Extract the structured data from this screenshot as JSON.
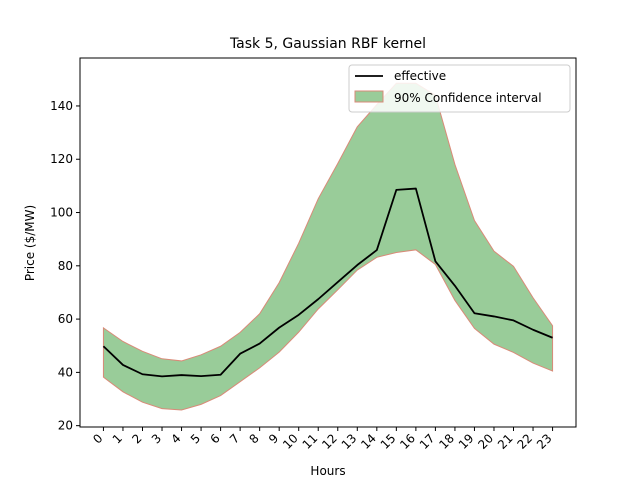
{
  "chart_data": {
    "type": "line",
    "title": "Task 5, Gaussian RBF kernel",
    "xlabel": "Hours",
    "ylabel": "Price ($/MW)",
    "x": [
      0,
      1,
      2,
      3,
      4,
      5,
      6,
      7,
      8,
      9,
      10,
      11,
      12,
      13,
      14,
      15,
      16,
      17,
      18,
      19,
      20,
      21,
      22,
      23
    ],
    "xlim": [
      -1.2,
      24.2
    ],
    "ylim": [
      19.5,
      158
    ],
    "yticks": [
      20,
      40,
      60,
      80,
      100,
      120,
      140
    ],
    "legend_position": "top-right",
    "grid": false,
    "series": [
      {
        "name": "effective",
        "color": "#000000",
        "values": [
          49.8,
          42.8,
          39.3,
          38.5,
          39.0,
          38.6,
          39.1,
          47.0,
          50.8,
          56.8,
          61.6,
          67.5,
          73.9,
          80.3,
          85.9,
          108.5,
          109.0,
          81.7,
          72.5,
          62.2,
          61.0,
          59.5,
          56.0,
          53.0
        ]
      }
    ],
    "band": {
      "name": "90% Confidence interval",
      "fill": "#99cc99",
      "edge": "#d98a78",
      "upper": [
        56.7,
        51.6,
        47.9,
        45.1,
        44.3,
        46.6,
        49.8,
        55.0,
        62.0,
        73.7,
        88.5,
        105.2,
        118.4,
        132.2,
        140.5,
        148.5,
        148.5,
        144.0,
        118.0,
        97.0,
        85.5,
        79.8,
        68.0,
        57.5
      ],
      "lower": [
        38.2,
        32.7,
        28.8,
        26.4,
        25.9,
        28.0,
        31.3,
        36.5,
        41.7,
        47.6,
        55.1,
        63.8,
        71.0,
        78.4,
        83.2,
        85.0,
        86.0,
        80.5,
        67.0,
        56.5,
        50.6,
        47.5,
        43.5,
        40.5
      ]
    }
  }
}
